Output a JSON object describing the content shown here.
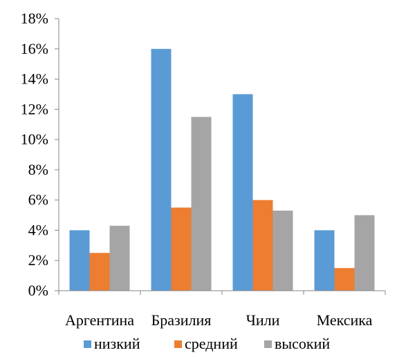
{
  "chart_data": {
    "type": "bar",
    "title": "",
    "xlabel": "",
    "ylabel": "",
    "categories": [
      "Аргентина",
      "Бразилия",
      "Чили",
      "Мексика"
    ],
    "series": [
      {
        "name": "низкий",
        "color": "#5B9BD5",
        "values": [
          4.0,
          16.0,
          13.0,
          4.0
        ]
      },
      {
        "name": "средний",
        "color": "#ED7D31",
        "values": [
          2.5,
          5.5,
          6.0,
          1.5
        ]
      },
      {
        "name": "высокий",
        "color": "#A5A5A5",
        "values": [
          4.3,
          11.5,
          5.3,
          5.0
        ]
      }
    ],
    "ylim": [
      0,
      18
    ],
    "yticks": [
      0,
      2,
      4,
      6,
      8,
      10,
      12,
      14,
      16,
      18
    ],
    "ytick_labels": [
      "0%",
      "2%",
      "4%",
      "6%",
      "8%",
      "10%",
      "12%",
      "14%",
      "16%",
      "18%"
    ],
    "grid": false,
    "legend_position": "bottom",
    "axis_color": "#868686"
  }
}
